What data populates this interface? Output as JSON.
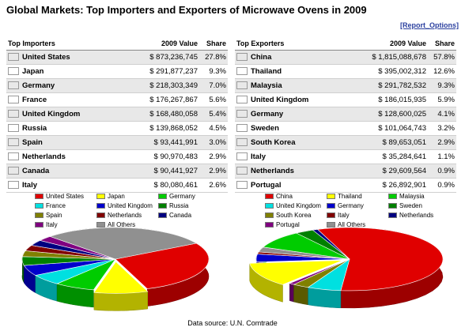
{
  "title": "Global Markets: Top Importers and Exporters of Microwave Ovens in 2009",
  "report_link": "[Report_Options]",
  "source": "Data source: U.N. Comtrade",
  "importers": {
    "headers": [
      "Top Importers",
      "2009 Value",
      "Share"
    ],
    "rows": [
      {
        "country": "United States",
        "value": "$ 873,236,745",
        "share": "27.8%"
      },
      {
        "country": "Japan",
        "value": "$ 291,877,237",
        "share": "9.3%"
      },
      {
        "country": "Germany",
        "value": "$ 218,303,349",
        "share": "7.0%"
      },
      {
        "country": "France",
        "value": "$ 176,267,867",
        "share": "5.6%"
      },
      {
        "country": "United Kingdom",
        "value": "$ 168,480,058",
        "share": "5.4%"
      },
      {
        "country": "Russia",
        "value": "$ 139,868,052",
        "share": "4.5%"
      },
      {
        "country": "Spain",
        "value": "$ 93,441,991",
        "share": "3.0%"
      },
      {
        "country": "Netherlands",
        "value": "$ 90,970,483",
        "share": "2.9%"
      },
      {
        "country": "Canada",
        "value": "$ 90,441,927",
        "share": "2.9%"
      },
      {
        "country": "Italy",
        "value": "$ 80,080,461",
        "share": "2.6%"
      }
    ]
  },
  "exporters": {
    "headers": [
      "Top Exporters",
      "2009 Value",
      "Share"
    ],
    "rows": [
      {
        "country": "China",
        "value": "$ 1,815,088,678",
        "share": "57.8%"
      },
      {
        "country": "Thailand",
        "value": "$ 395,002,312",
        "share": "12.6%"
      },
      {
        "country": "Malaysia",
        "value": "$ 291,782,532",
        "share": "9.3%"
      },
      {
        "country": "United Kingdom",
        "value": "$ 186,015,935",
        "share": "5.9%"
      },
      {
        "country": "Germany",
        "value": "$ 128,600,025",
        "share": "4.1%"
      },
      {
        "country": "Sweden",
        "value": "$ 101,064,743",
        "share": "3.2%"
      },
      {
        "country": "South Korea",
        "value": "$ 89,653,051",
        "share": "2.9%"
      },
      {
        "country": "Italy",
        "value": "$ 35,284,641",
        "share": "1.1%"
      },
      {
        "country": "Netherlands",
        "value": "$ 29,609,564",
        "share": "0.9%"
      },
      {
        "country": "Portugal",
        "value": "$ 26,892,901",
        "share": "0.9%"
      }
    ]
  },
  "chart_data": [
    {
      "type": "pie",
      "title": "",
      "categories": [
        "United States",
        "Japan",
        "Germany",
        "France",
        "United Kingdom",
        "Russia",
        "Spain",
        "Netherlands",
        "Canada",
        "Italy",
        "All Others"
      ],
      "values": [
        27.8,
        9.3,
        7.0,
        5.6,
        5.4,
        4.5,
        3.0,
        2.9,
        2.9,
        2.6,
        29.0
      ],
      "colors": [
        "#e00000",
        "#ffff00",
        "#00cc00",
        "#00e0e0",
        "#0000cc",
        "#008000",
        "#808000",
        "#800000",
        "#000080",
        "#800080",
        "#909090"
      ],
      "exploded": [
        false,
        true,
        false,
        false,
        false,
        false,
        false,
        false,
        false,
        false,
        false
      ],
      "legend": "top"
    },
    {
      "type": "pie",
      "title": "",
      "categories": [
        "China",
        "United Kingdom",
        "South Korea",
        "Portugal",
        "Thailand",
        "Germany",
        "Italy",
        "All Others",
        "Malaysia",
        "Sweden",
        "Netherlands"
      ],
      "values": [
        57.8,
        5.9,
        2.9,
        0.9,
        12.6,
        4.1,
        1.1,
        2.6,
        9.3,
        3.2,
        0.9
      ],
      "colors": [
        "#e00000",
        "#00e0e0",
        "#808000",
        "#800080",
        "#ffff00",
        "#0000cc",
        "#800000",
        "#909090",
        "#00cc00",
        "#008000",
        "#000080"
      ],
      "exploded": [
        false,
        false,
        false,
        false,
        true,
        false,
        false,
        false,
        false,
        false,
        false
      ],
      "legend": "top"
    }
  ]
}
